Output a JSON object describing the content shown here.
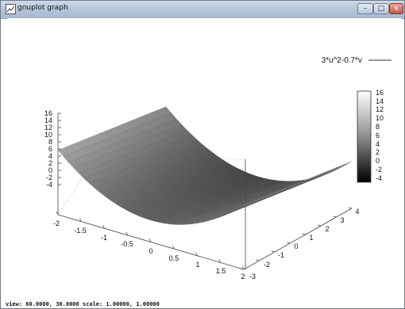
{
  "window": {
    "title": "gnuplot graph",
    "min_label": "–",
    "max_label": "□",
    "close_label": "x"
  },
  "plot": {
    "legend": "3*u^2-0.7*v",
    "status": "view: 60.0000, 30.0000  scale: 1.00000, 1.00000"
  },
  "chart_data": {
    "type": "surface",
    "function": "3*u^2-0.7*v",
    "u_range": [
      -2,
      2
    ],
    "v_range": [
      -3,
      4
    ],
    "u_ticks": [
      "-2",
      "-1.5",
      "-1",
      "-0.5",
      "0",
      "0.5",
      "1",
      "1.5",
      "2"
    ],
    "v_ticks": [
      "-3",
      "-2",
      "-1",
      "0",
      "1",
      "2",
      "3",
      "4"
    ],
    "z_ticks": [
      "16",
      "14",
      "12",
      "10",
      "8",
      "6",
      "4",
      "2",
      "0",
      "-2",
      "-4"
    ],
    "colorbar_ticks": [
      "16",
      "14",
      "12",
      "10",
      "8",
      "6",
      "4",
      "2",
      "0",
      "-2",
      "-4"
    ],
    "zlim": [
      -4,
      16
    ],
    "view": [
      60,
      30
    ],
    "colormap": "gray"
  }
}
